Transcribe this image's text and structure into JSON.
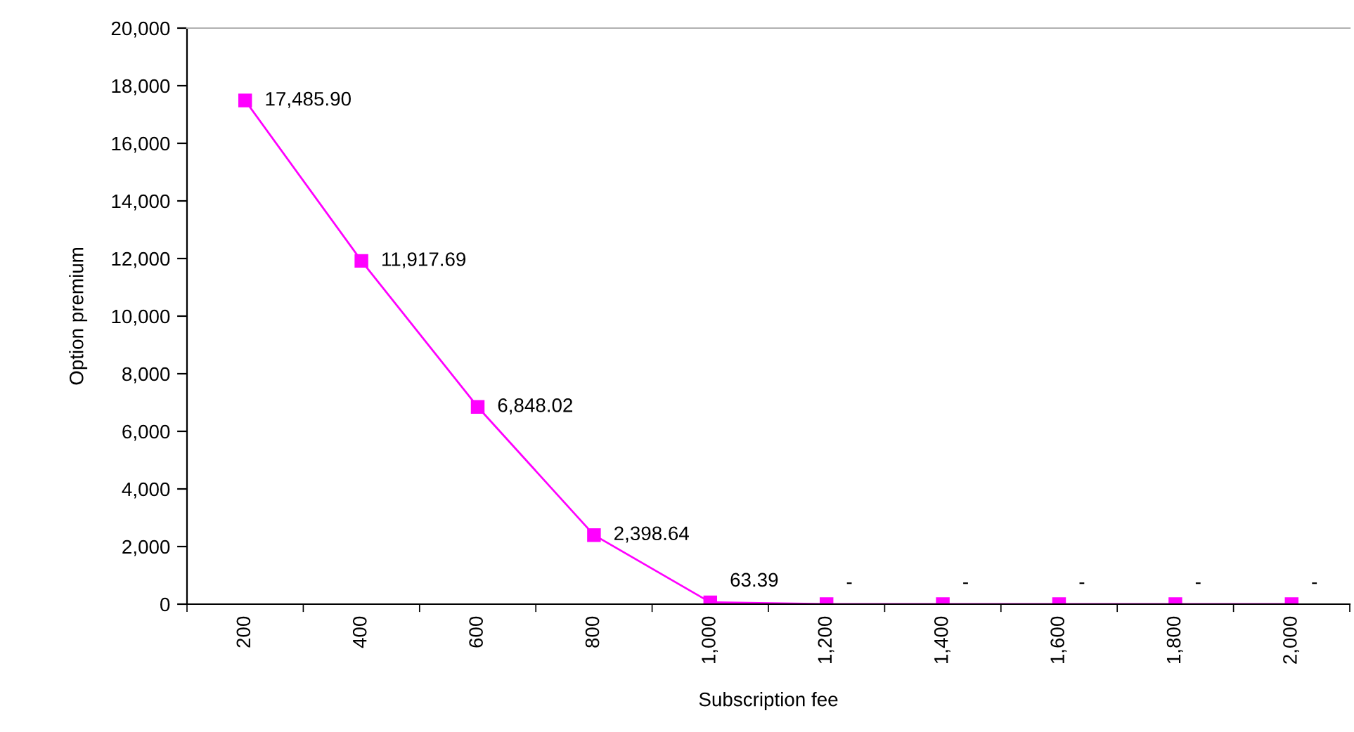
{
  "chart_data": {
    "type": "line",
    "xlabel": "Subscription fee",
    "ylabel": "Option premium",
    "categories": [
      "200",
      "400",
      "600",
      "800",
      "1,000",
      "1,200",
      "1,400",
      "1,600",
      "1,800",
      "2,000"
    ],
    "series": [
      {
        "color": "#ff00ff",
        "values": [
          17485.9,
          11917.69,
          6848.02,
          2398.64,
          63.39,
          0,
          0,
          0,
          0,
          0
        ],
        "value_labels": [
          "17,485.90",
          "11,917.69",
          "6,848.02",
          "2,398.64",
          "63.39",
          "-",
          "-",
          "-",
          "-",
          "-"
        ]
      }
    ],
    "ylim": [
      0,
      20000
    ],
    "yticks": [
      {
        "value": 0,
        "label": "0"
      },
      {
        "value": 2000,
        "label": "2,000"
      },
      {
        "value": 4000,
        "label": "4,000"
      },
      {
        "value": 6000,
        "label": "6,000"
      },
      {
        "value": 8000,
        "label": "8,000"
      },
      {
        "value": 10000,
        "label": "10,000"
      },
      {
        "value": 12000,
        "label": "12,000"
      },
      {
        "value": 14000,
        "label": "14,000"
      },
      {
        "value": 16000,
        "label": "16,000"
      },
      {
        "value": 18000,
        "label": "18,000"
      },
      {
        "value": 20000,
        "label": "20,000"
      }
    ],
    "marker": "square",
    "line_style": "solid",
    "grid": false,
    "legend": false
  }
}
